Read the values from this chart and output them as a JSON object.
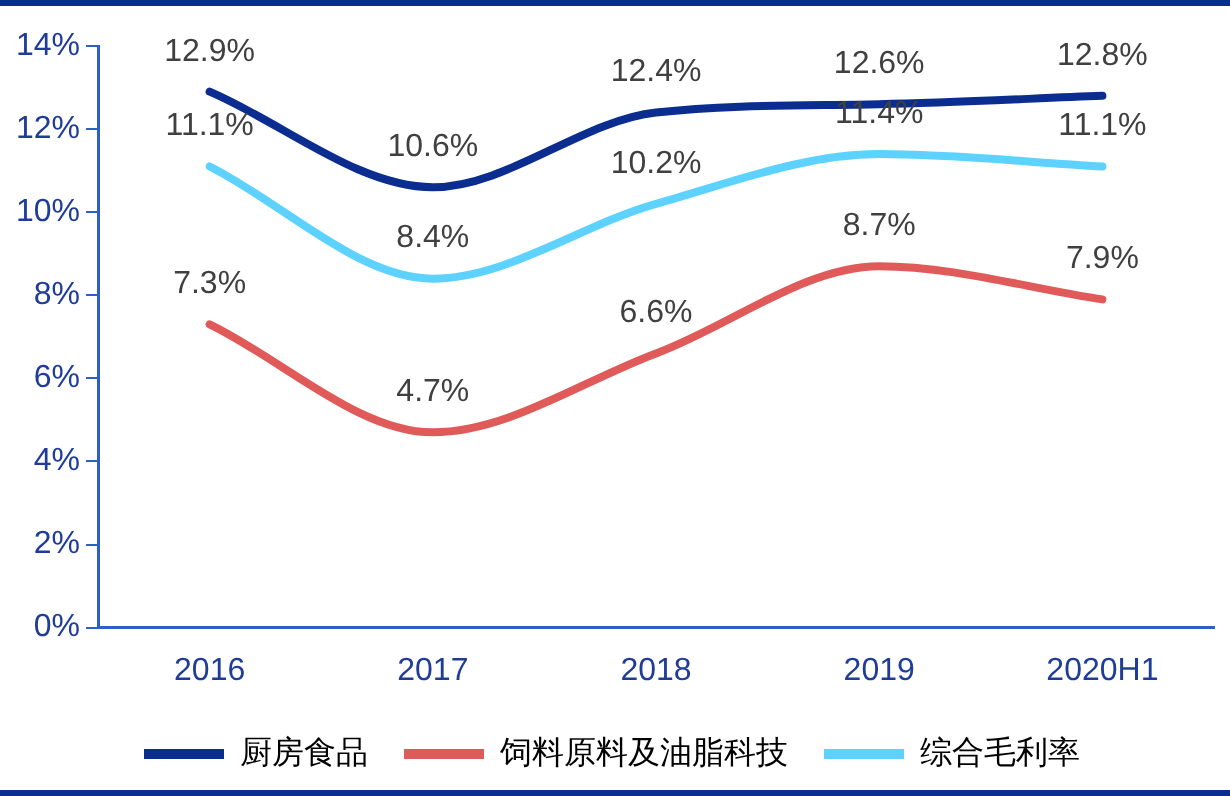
{
  "chart_data": {
    "type": "line",
    "categories": [
      "2016",
      "2017",
      "2018",
      "2019",
      "2020H1"
    ],
    "series": [
      {
        "name": "厨房食品",
        "color": "#0a2d8f",
        "values": [
          12.9,
          10.6,
          12.4,
          12.6,
          12.8
        ],
        "value_labels": [
          "12.9%",
          "10.6%",
          "12.4%",
          "12.6%",
          "12.8%"
        ]
      },
      {
        "name": "饲料原料及油脂科技",
        "color": "#e05a5a",
        "values": [
          7.3,
          4.7,
          6.6,
          8.7,
          7.9
        ],
        "value_labels": [
          "7.3%",
          "4.7%",
          "6.6%",
          "8.7%",
          "7.9%"
        ]
      },
      {
        "name": "综合毛利率",
        "color": "#5dd2ff",
        "values": [
          11.1,
          8.4,
          10.2,
          11.4,
          11.1
        ],
        "value_labels": [
          "11.1%",
          "8.4%",
          "10.2%",
          "11.4%",
          "11.1%"
        ]
      }
    ],
    "ylim": [
      0,
      14
    ],
    "yticks": [
      {
        "value": 0,
        "label": "0%"
      },
      {
        "value": 2,
        "label": "2%"
      },
      {
        "value": 4,
        "label": "4%"
      },
      {
        "value": 6,
        "label": "6%"
      },
      {
        "value": 8,
        "label": "8%"
      },
      {
        "value": 10,
        "label": "10%"
      },
      {
        "value": 12,
        "label": "12%"
      },
      {
        "value": 14,
        "label": "14%"
      }
    ],
    "grid": false,
    "legend": "bottom",
    "marker": "none",
    "line_style": "solid"
  }
}
